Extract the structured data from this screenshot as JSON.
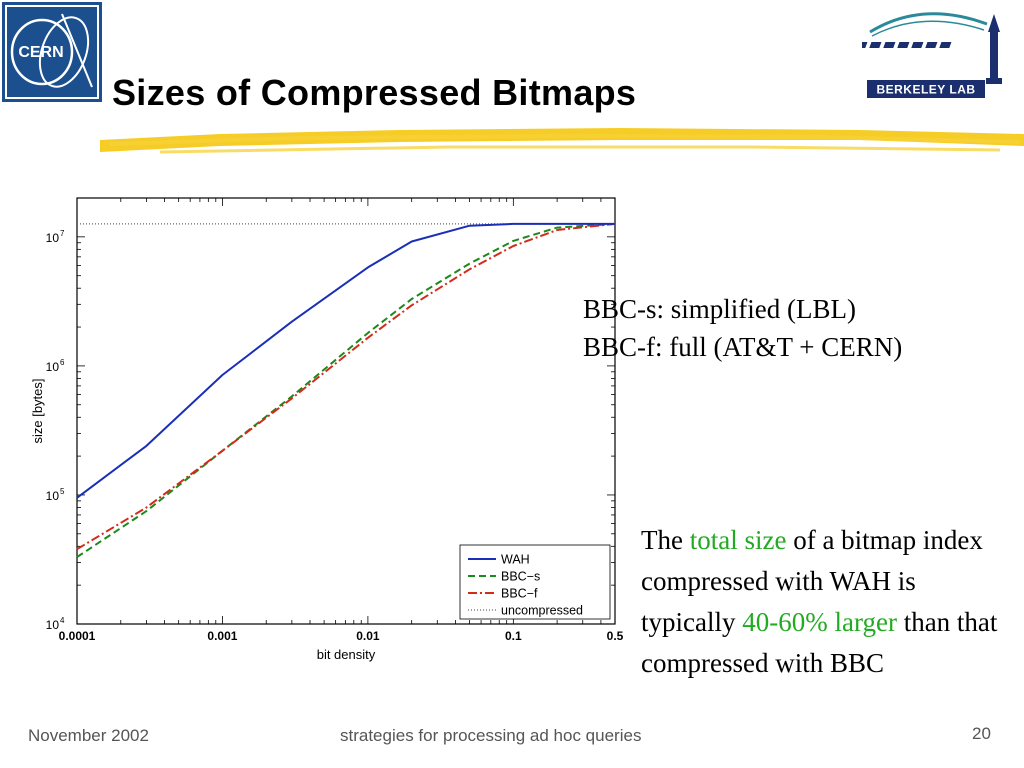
{
  "slide": {
    "title": "Sizes of Compressed Bitmaps",
    "logos": {
      "left": "CERN",
      "right": "BERKELEY LAB"
    },
    "notes": [
      "BBC-s: simplified (LBL)",
      "BBC-f: full (AT&T + CERN)"
    ],
    "summary": {
      "t1": "The ",
      "t2": "total size",
      "t3": " of a bitmap index compressed with WAH is typically ",
      "t4": "40-60% larger",
      "t5": " than that compressed with BBC"
    },
    "footer": {
      "date": "November 2002",
      "title": "strategies for processing ad hoc queries",
      "page": "20"
    },
    "colors": {
      "highlight": "#f5c400",
      "emphasis": "#22aa22",
      "wah": "#1a2fb8",
      "bbc_s": "#1a8a1a",
      "bbc_f": "#d42a1a",
      "uncompressed": "#666666"
    }
  },
  "chart_data": {
    "type": "line",
    "xlabel": "bit density",
    "ylabel": "size [bytes]",
    "x_scale": "log",
    "y_scale": "log",
    "xlim": [
      0.0001,
      0.5
    ],
    "ylim": [
      10000,
      20000000
    ],
    "x_ticks": [
      0.0001,
      0.001,
      0.01,
      0.1,
      0.5
    ],
    "x_tick_labels": [
      "0.0001",
      "0.001",
      "0.01",
      "0.1",
      "0.5"
    ],
    "y_ticks": [
      10000,
      100000,
      1000000,
      10000000
    ],
    "y_tick_labels": [
      [
        "10",
        "4"
      ],
      [
        "10",
        "5"
      ],
      [
        "10",
        "6"
      ],
      [
        "10",
        "7"
      ]
    ],
    "legend": {
      "position": "bottom-right"
    },
    "series": [
      {
        "name": "WAH",
        "style": "solid",
        "color": "#1a2fb8",
        "x": [
          0.0001,
          0.0003,
          0.001,
          0.003,
          0.01,
          0.02,
          0.05,
          0.1,
          0.2,
          0.5
        ],
        "y": [
          95000,
          240000,
          850000,
          2200000,
          5800000,
          9200000,
          12200000,
          12600000,
          12600000,
          12600000
        ]
      },
      {
        "name": "BBC−s",
        "style": "dashed",
        "color": "#1a8a1a",
        "x": [
          0.0001,
          0.0003,
          0.001,
          0.003,
          0.01,
          0.02,
          0.05,
          0.1,
          0.2,
          0.5
        ],
        "y": [
          33000,
          75000,
          220000,
          580000,
          1800000,
          3300000,
          6200000,
          9300000,
          11800000,
          12600000
        ]
      },
      {
        "name": "BBC−f",
        "style": "dashdot",
        "color": "#d42a1a",
        "x": [
          0.0001,
          0.0003,
          0.001,
          0.003,
          0.01,
          0.02,
          0.05,
          0.1,
          0.2,
          0.5
        ],
        "y": [
          38000,
          80000,
          220000,
          560000,
          1650000,
          2950000,
          5600000,
          8500000,
          11300000,
          12600000
        ]
      },
      {
        "name": "uncompressed",
        "style": "dotted",
        "color": "#666666",
        "x": [
          0.0001,
          0.5
        ],
        "y": [
          12600000,
          12600000
        ]
      }
    ]
  }
}
